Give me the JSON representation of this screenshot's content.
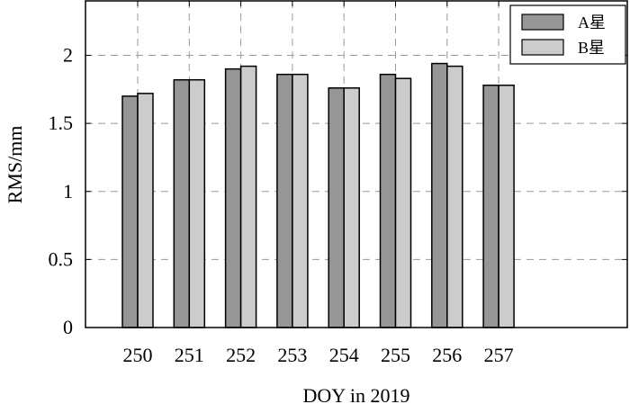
{
  "chart_data": {
    "type": "bar",
    "title": "",
    "xlabel": "DOY in 2019",
    "ylabel": "RMS/mm",
    "categories": [
      "250",
      "251",
      "252",
      "253",
      "254",
      "255",
      "256",
      "257"
    ],
    "series": [
      {
        "name": "A星",
        "color": "#969696",
        "values": [
          1.7,
          1.82,
          1.9,
          1.86,
          1.76,
          1.86,
          1.94,
          1.78
        ]
      },
      {
        "name": "B星",
        "color": "#cccccc",
        "values": [
          1.72,
          1.82,
          1.92,
          1.86,
          1.76,
          1.83,
          1.92,
          1.78
        ]
      }
    ],
    "ylim": [
      0,
      2.4
    ],
    "yticks": [
      0,
      0.5,
      1,
      1.5,
      2
    ],
    "ytick_labels": [
      "0",
      "0.5",
      "1",
      "1.5",
      "2"
    ],
    "grid": true,
    "legend_position": "top-right"
  }
}
